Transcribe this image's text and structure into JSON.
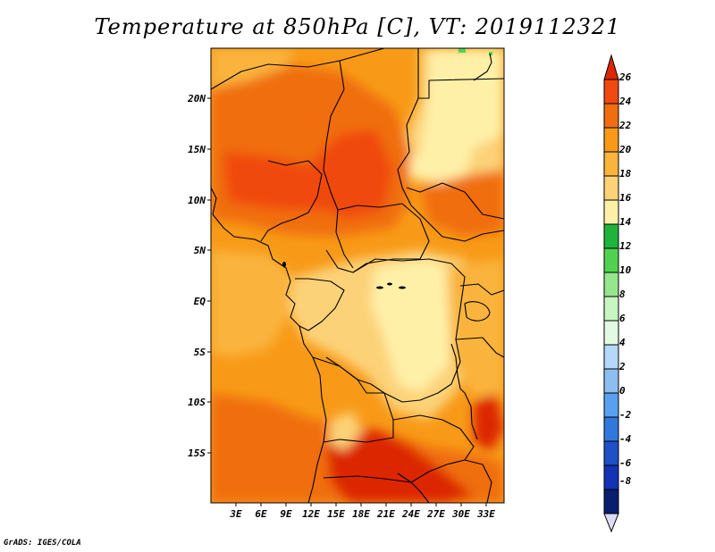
{
  "title": "Temperature at 850hPa [C], VT: 2019112321",
  "credit": "GrADS: IGES/COLA",
  "map": {
    "variable": "Temperature at 850hPa",
    "units": "C",
    "valid_time": "2019112321",
    "lat_labels": [
      "20N",
      "15N",
      "10N",
      "5N",
      "EQ",
      "5S",
      "10S",
      "15S"
    ],
    "lon_labels": [
      "3E",
      "6E",
      "9E",
      "12E",
      "15E",
      "18E",
      "21E",
      "24E",
      "27E",
      "30E",
      "33E"
    ]
  },
  "colorbar": {
    "levels": [
      "26",
      "24",
      "22",
      "20",
      "18",
      "16",
      "14",
      "12",
      "10",
      "8",
      "6",
      "4",
      "2",
      "0",
      "-2",
      "-4",
      "-6",
      "-8"
    ],
    "colors": [
      "#dc2800",
      "#f04a10",
      "#f06e10",
      "#f89a18",
      "#fab43c",
      "#fcd278",
      "#fff0a8",
      "#1eb43c",
      "#50d250",
      "#96e68c",
      "#c8f5c0",
      "#e1fae1",
      "#b4d7fa",
      "#8cbef0",
      "#5aa0f0",
      "#3278dc",
      "#1e50c8",
      "#1432b4",
      "#081e6e",
      "#dcdcf5"
    ]
  },
  "legend_colors": {
    "deep_red": "#dc2800",
    "red_orange": "#f04a10",
    "orange": "#f06e10",
    "light_orange": "#f89a18",
    "amber": "#fab43c",
    "pale_yellow": "#fcd278",
    "cream": "#fff0a8",
    "green": "#1eb43c"
  }
}
